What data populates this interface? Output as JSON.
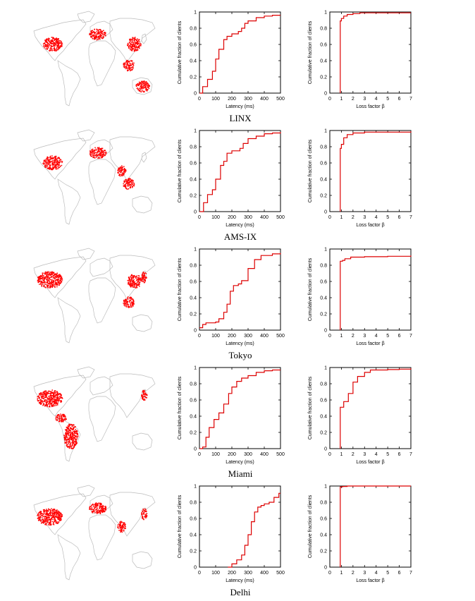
{
  "figure": {
    "rows": [
      {
        "label": "LINX",
        "map_hotspots": [
          "north-america-east",
          "europe",
          "east-asia",
          "southeast-asia",
          "australia"
        ]
      },
      {
        "label": "AMS-IX",
        "map_hotspots": [
          "north-america-east",
          "europe",
          "india",
          "southeast-asia"
        ]
      },
      {
        "label": "Tokyo",
        "map_hotspots": [
          "north-america",
          "east-asia",
          "japan",
          "southeast-asia"
        ]
      },
      {
        "label": "Miami",
        "map_hotspots": [
          "north-america",
          "central-america",
          "south-america",
          "japan"
        ]
      },
      {
        "label": "Delhi",
        "map_hotspots": [
          "north-america",
          "europe",
          "india",
          "japan"
        ]
      }
    ],
    "colors": {
      "curve": "#dd0000",
      "map_outline": "#bbbbbb",
      "dots": "#ff0000",
      "axes": "#000000"
    }
  },
  "chart_data": [
    {
      "type": "line",
      "title": "LINX latency CDF",
      "xlabel": "Latency (ms)",
      "ylabel": "Cumulative fraction of clients",
      "xlim": [
        0,
        500
      ],
      "ylim": [
        0,
        1
      ],
      "xticks": [
        0,
        100,
        200,
        300,
        400,
        500
      ],
      "yticks": [
        0,
        0.2,
        0.4,
        0.6,
        0.8,
        1
      ],
      "x": [
        0,
        20,
        50,
        80,
        100,
        120,
        150,
        170,
        200,
        240,
        260,
        280,
        300,
        350,
        400,
        450,
        500
      ],
      "y": [
        0,
        0.08,
        0.17,
        0.27,
        0.42,
        0.54,
        0.66,
        0.7,
        0.73,
        0.76,
        0.8,
        0.86,
        0.89,
        0.93,
        0.95,
        0.96,
        0.96
      ]
    },
    {
      "type": "line",
      "title": "LINX loss factor CDF",
      "xlabel": "Loss factor β",
      "ylabel": "Cumulative fraction of clients",
      "xlim": [
        0,
        7
      ],
      "ylim": [
        0,
        1
      ],
      "xticks": [
        0,
        1,
        2,
        3,
        4,
        5,
        6,
        7
      ],
      "yticks": [
        0,
        0.2,
        0.4,
        0.6,
        0.8,
        1
      ],
      "x": [
        0.9,
        0.9,
        1.0,
        1.2,
        1.5,
        2.0,
        2.6,
        3.0,
        7.0
      ],
      "y": [
        0,
        0.89,
        0.92,
        0.95,
        0.97,
        0.98,
        0.99,
        0.99,
        0.99
      ]
    },
    {
      "type": "line",
      "title": "AMS-IX latency CDF",
      "xlabel": "Latency (ms)",
      "ylabel": "Cumulative fraction of clients",
      "xlim": [
        0,
        500
      ],
      "ylim": [
        0,
        1
      ],
      "xticks": [
        0,
        100,
        200,
        300,
        400,
        500
      ],
      "yticks": [
        0,
        0.2,
        0.4,
        0.6,
        0.8,
        1
      ],
      "x": [
        0,
        25,
        50,
        80,
        100,
        130,
        150,
        170,
        200,
        250,
        270,
        300,
        350,
        400,
        450,
        500
      ],
      "y": [
        0,
        0.11,
        0.21,
        0.27,
        0.4,
        0.57,
        0.62,
        0.72,
        0.75,
        0.78,
        0.84,
        0.9,
        0.93,
        0.96,
        0.97,
        0.98
      ]
    },
    {
      "type": "line",
      "title": "AMS-IX loss factor CDF",
      "xlabel": "Loss factor β",
      "ylabel": "Cumulative fraction of clients",
      "xlim": [
        0,
        7
      ],
      "ylim": [
        0,
        1
      ],
      "xticks": [
        0,
        1,
        2,
        3,
        4,
        5,
        6,
        7
      ],
      "yticks": [
        0,
        0.2,
        0.4,
        0.6,
        0.8,
        1
      ],
      "x": [
        0.9,
        0.9,
        1.0,
        1.2,
        1.5,
        2.0,
        3.0,
        7.0
      ],
      "y": [
        0,
        0.78,
        0.83,
        0.91,
        0.95,
        0.97,
        0.98,
        0.99
      ]
    },
    {
      "type": "line",
      "title": "Tokyo latency CDF",
      "xlabel": "Latency (ms)",
      "ylabel": "Cumulative fraction of clients",
      "xlim": [
        0,
        500
      ],
      "ylim": [
        0,
        1
      ],
      "xticks": [
        0,
        100,
        200,
        300,
        400,
        500
      ],
      "yticks": [
        0,
        0.2,
        0.4,
        0.6,
        0.8,
        1
      ],
      "x": [
        0,
        20,
        40,
        100,
        120,
        150,
        170,
        190,
        210,
        240,
        260,
        300,
        340,
        380,
        450,
        500
      ],
      "y": [
        0.03,
        0.07,
        0.09,
        0.1,
        0.14,
        0.22,
        0.32,
        0.48,
        0.55,
        0.57,
        0.61,
        0.76,
        0.87,
        0.92,
        0.94,
        0.95
      ]
    },
    {
      "type": "line",
      "title": "Tokyo loss factor CDF",
      "xlabel": "Loss factor β",
      "ylabel": "Cumulative fraction of clients",
      "xlim": [
        0,
        7
      ],
      "ylim": [
        0,
        1
      ],
      "xticks": [
        0,
        1,
        2,
        3,
        4,
        5,
        6,
        7
      ],
      "yticks": [
        0,
        0.2,
        0.4,
        0.6,
        0.8,
        1
      ],
      "x": [
        0.9,
        0.9,
        1.1,
        1.3,
        1.8,
        3.0,
        5.0,
        7.0
      ],
      "y": [
        0,
        0.85,
        0.86,
        0.88,
        0.9,
        0.905,
        0.91,
        0.92
      ]
    },
    {
      "type": "line",
      "title": "Miami latency CDF",
      "xlabel": "Latency (ms)",
      "ylabel": "Cumulative fraction of clients",
      "xlim": [
        0,
        500
      ],
      "ylim": [
        0,
        1
      ],
      "xticks": [
        0,
        100,
        200,
        300,
        400,
        500
      ],
      "yticks": [
        0,
        0.2,
        0.4,
        0.6,
        0.8,
        1
      ],
      "x": [
        0,
        20,
        40,
        60,
        90,
        120,
        150,
        180,
        200,
        230,
        260,
        300,
        350,
        400,
        450,
        500
      ],
      "y": [
        0,
        0.02,
        0.14,
        0.26,
        0.36,
        0.44,
        0.55,
        0.68,
        0.76,
        0.83,
        0.87,
        0.9,
        0.94,
        0.96,
        0.97,
        0.97
      ]
    },
    {
      "type": "line",
      "title": "Miami loss factor CDF",
      "xlabel": "Loss factor β",
      "ylabel": "Cumulative fraction of clients",
      "xlim": [
        0,
        7
      ],
      "ylim": [
        0,
        1
      ],
      "xticks": [
        0,
        1,
        2,
        3,
        4,
        5,
        6,
        7
      ],
      "yticks": [
        0,
        0.2,
        0.4,
        0.6,
        0.8,
        1
      ],
      "x": [
        0.9,
        0.9,
        1.2,
        1.6,
        2.0,
        2.4,
        3.0,
        3.5,
        5.0,
        6.0,
        7.0
      ],
      "y": [
        0,
        0.51,
        0.58,
        0.68,
        0.82,
        0.89,
        0.94,
        0.97,
        0.975,
        0.98,
        0.99
      ]
    },
    {
      "type": "line",
      "title": "Delhi latency CDF",
      "xlabel": "Latency (ms)",
      "ylabel": "Cumulative fraction of clients",
      "xlim": [
        0,
        500
      ],
      "ylim": [
        0,
        1
      ],
      "xticks": [
        0,
        100,
        200,
        300,
        400,
        500
      ],
      "yticks": [
        0,
        0.2,
        0.4,
        0.6,
        0.8,
        1
      ],
      "x": [
        175,
        200,
        230,
        260,
        280,
        300,
        320,
        340,
        360,
        380,
        400,
        430,
        460,
        490,
        500
      ],
      "y": [
        0,
        0.04,
        0.09,
        0.15,
        0.27,
        0.4,
        0.56,
        0.68,
        0.74,
        0.76,
        0.78,
        0.8,
        0.86,
        0.91,
        0.91
      ]
    },
    {
      "type": "line",
      "title": "Delhi loss factor CDF",
      "xlabel": "Loss factor β",
      "ylabel": "Cumulative fraction of clients",
      "xlim": [
        0,
        7
      ],
      "ylim": [
        0,
        1
      ],
      "xticks": [
        0,
        1,
        2,
        3,
        4,
        5,
        6,
        7
      ],
      "yticks": [
        0,
        0.2,
        0.4,
        0.6,
        0.8,
        1
      ],
      "x": [
        0.9,
        0.9,
        1.1,
        1.5,
        7.0
      ],
      "y": [
        0,
        0.99,
        0.995,
        1.0,
        1.0
      ]
    }
  ]
}
